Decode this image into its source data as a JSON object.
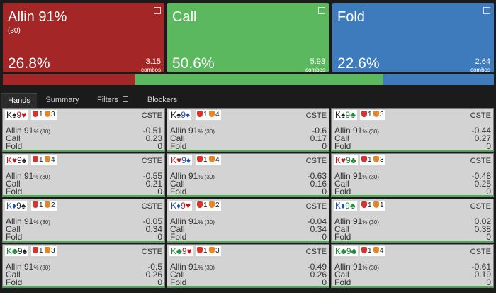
{
  "actions": [
    {
      "title": "Allin 91%",
      "subtitle": "(30)",
      "pct": 26.8,
      "pct_label": "26.8%",
      "combos": 3.15,
      "color": "#a52626"
    },
    {
      "title": "Call",
      "pct": 50.6,
      "pct_label": "50.6%",
      "combos": 5.93,
      "color": "#5cb85e"
    },
    {
      "title": "Fold",
      "pct": 22.6,
      "pct_label": "22.6%",
      "combos": 2.64,
      "color": "#3d7bbd"
    }
  ],
  "combos_label": "combos",
  "tabs": [
    "Hands",
    "Summary",
    "Filters",
    "Blockers"
  ],
  "active_tab": 0,
  "cell_labels": {
    "allin": "Allin 91",
    "allin_suffix": "% (30)",
    "call": "Call",
    "fold": "Fold",
    "tag": "CSTE"
  },
  "cells": [
    {
      "cards": [
        {
          "rank": "K",
          "suit": "♠",
          "color": "#222"
        },
        {
          "rank": "9",
          "suit": "♥",
          "color": "#c8161d"
        }
      ],
      "badges": [
        1,
        3
      ],
      "allin": -0.51,
      "call": 0.23,
      "fold": 0
    },
    {
      "cards": [
        {
          "rank": "K",
          "suit": "♠",
          "color": "#222"
        },
        {
          "rank": "9",
          "suit": "♦",
          "color": "#1f4fb5"
        }
      ],
      "badges": [
        1,
        4
      ],
      "allin": -0.6,
      "call": 0.17,
      "fold": 0
    },
    {
      "cards": [
        {
          "rank": "K",
          "suit": "♠",
          "color": "#222"
        },
        {
          "rank": "9",
          "suit": "♣",
          "color": "#1d8a35"
        }
      ],
      "badges": [
        1,
        3
      ],
      "allin": -0.44,
      "call": 0.27,
      "fold": 0
    },
    {
      "cards": [
        {
          "rank": "K",
          "suit": "♥",
          "color": "#c8161d"
        },
        {
          "rank": "9",
          "suit": "♠",
          "color": "#222"
        }
      ],
      "badges": [
        1,
        4
      ],
      "allin": -0.55,
      "call": 0.21,
      "fold": 0
    },
    {
      "cards": [
        {
          "rank": "K",
          "suit": "♥",
          "color": "#c8161d"
        },
        {
          "rank": "9",
          "suit": "♦",
          "color": "#1f4fb5"
        }
      ],
      "badges": [
        1,
        4
      ],
      "allin": -0.63,
      "call": 0.16,
      "fold": 0
    },
    {
      "cards": [
        {
          "rank": "K",
          "suit": "♥",
          "color": "#c8161d"
        },
        {
          "rank": "9",
          "suit": "♣",
          "color": "#1d8a35"
        }
      ],
      "badges": [
        1,
        3
      ],
      "allin": -0.48,
      "call": 0.25,
      "fold": 0
    },
    {
      "cards": [
        {
          "rank": "K",
          "suit": "♦",
          "color": "#1f4fb5"
        },
        {
          "rank": "9",
          "suit": "♠",
          "color": "#222"
        }
      ],
      "badges": [
        1,
        2
      ],
      "allin": -0.05,
      "call": 0.34,
      "fold": 0
    },
    {
      "cards": [
        {
          "rank": "K",
          "suit": "♦",
          "color": "#1f4fb5"
        },
        {
          "rank": "9",
          "suit": "♥",
          "color": "#c8161d"
        }
      ],
      "badges": [
        1,
        2
      ],
      "allin": -0.04,
      "call": 0.34,
      "fold": 0
    },
    {
      "cards": [
        {
          "rank": "K",
          "suit": "♦",
          "color": "#1f4fb5"
        },
        {
          "rank": "9",
          "suit": "♣",
          "color": "#1d8a35"
        }
      ],
      "badges": [
        1,
        1
      ],
      "allin": 0.02,
      "call": 0.38,
      "fold": 0
    },
    {
      "cards": [
        {
          "rank": "K",
          "suit": "♣",
          "color": "#1d8a35"
        },
        {
          "rank": "9",
          "suit": "♠",
          "color": "#222"
        }
      ],
      "badges": [
        1,
        3
      ],
      "allin": -0.5,
      "call": 0.26,
      "fold": 0
    },
    {
      "cards": [
        {
          "rank": "K",
          "suit": "♣",
          "color": "#1d8a35"
        },
        {
          "rank": "9",
          "suit": "♥",
          "color": "#c8161d"
        }
      ],
      "badges": [
        1,
        3
      ],
      "allin": -0.49,
      "call": 0.26,
      "fold": 0
    },
    {
      "cards": [
        {
          "rank": "K",
          "suit": "♣",
          "color": "#1d8a35"
        },
        {
          "rank": "9",
          "suit": "♣",
          "color": "#1d8a35"
        }
      ],
      "badges": [
        1,
        4
      ],
      "allin": -0.61,
      "call": 0.19,
      "fold": 0
    }
  ]
}
